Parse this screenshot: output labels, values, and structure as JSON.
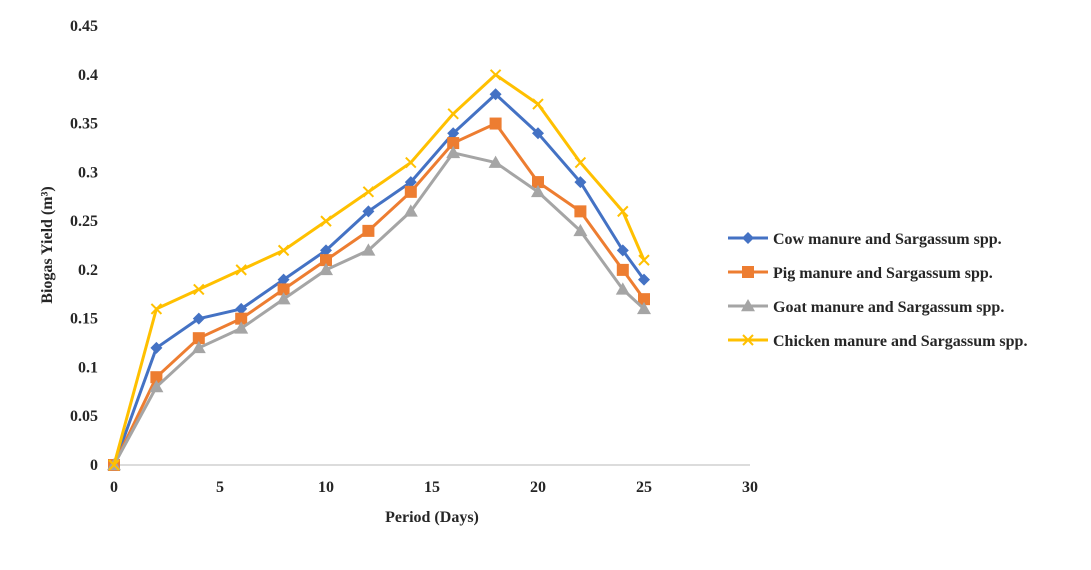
{
  "chart_data": {
    "type": "line",
    "title": "",
    "xlabel": "Period  (Days)",
    "ylabel": "Biogas Yield (m³)",
    "xlim": [
      0,
      30
    ],
    "ylim": [
      0,
      0.45
    ],
    "x_ticks": [
      0,
      5,
      10,
      15,
      20,
      25,
      30
    ],
    "y_ticks": [
      0,
      0.05,
      0.1,
      0.15,
      0.2,
      0.25,
      0.3,
      0.35,
      0.4,
      0.45
    ],
    "x_tick_labels": [
      "0",
      "5",
      "10",
      "15",
      "20",
      "25",
      "30"
    ],
    "y_tick_labels": [
      "0",
      "0.05",
      "0.1",
      "0.15",
      "0.2",
      "0.25",
      "0.3",
      "0.35",
      "0.4",
      "0.45"
    ],
    "grid": false,
    "legend_position": "right",
    "x": [
      0,
      2,
      4,
      6,
      8,
      10,
      12,
      14,
      16,
      18,
      20,
      22,
      24,
      25
    ],
    "series": [
      {
        "name": "Cow  manure and Sargassum spp.",
        "color": "#4472C4",
        "marker": "diamond",
        "values": [
          0,
          0.12,
          0.15,
          0.16,
          0.19,
          0.22,
          0.26,
          0.29,
          0.34,
          0.38,
          0.34,
          0.29,
          0.22,
          0.19
        ]
      },
      {
        "name": "Pig manure and Sargassum spp.",
        "color": "#ED7D31",
        "marker": "square",
        "values": [
          0,
          0.09,
          0.13,
          0.15,
          0.18,
          0.21,
          0.24,
          0.28,
          0.33,
          0.35,
          0.29,
          0.26,
          0.2,
          0.17
        ]
      },
      {
        "name": "Goat manure and Sargassum spp.",
        "color": "#A5A5A5",
        "marker": "triangle",
        "values": [
          0,
          0.08,
          0.12,
          0.14,
          0.17,
          0.2,
          0.22,
          0.26,
          0.32,
          0.31,
          0.28,
          0.24,
          0.18,
          0.16
        ]
      },
      {
        "name": "Chicken manure and Sargassum spp.",
        "color": "#FFC000",
        "marker": "x",
        "values": [
          0,
          0.16,
          0.18,
          0.2,
          0.22,
          0.25,
          0.28,
          0.31,
          0.36,
          0.4,
          0.37,
          0.31,
          0.26,
          0.21
        ]
      }
    ]
  }
}
